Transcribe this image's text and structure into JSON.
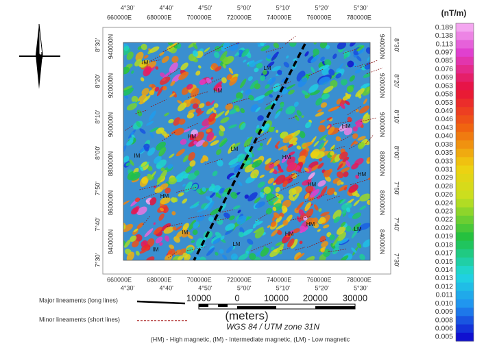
{
  "map": {
    "top_degrees": [
      "4°30'",
      "4°40'",
      "4°50'",
      "5°00'",
      "5°10'",
      "5°20'",
      "5°30'"
    ],
    "top_utm": [
      "660000E",
      "680000E",
      "700000E",
      "720000E",
      "740000E",
      "760000E",
      "780000E"
    ],
    "bottom_utm": [
      "660000E",
      "680000E",
      "700000E",
      "720000E",
      "740000E",
      "760000E",
      "780000E"
    ],
    "bottom_degrees": [
      "4°30'",
      "4°40'",
      "4°50'",
      "5°00'",
      "5°10'",
      "5°20'",
      "5°30'"
    ],
    "left_degrees": [
      "8°30'",
      "8°20'",
      "8°10'",
      "8°00'",
      "7°50'",
      "7°40'",
      "7°30'"
    ],
    "left_utm": [
      "940000N",
      "920000N",
      "900000N",
      "880000N",
      "860000N",
      "840000N"
    ],
    "right_utm": [
      "940000N",
      "920000N",
      "900000N",
      "880000N",
      "860000N",
      "840000N"
    ],
    "right_degrees": [
      "8°30'",
      "8°20'",
      "8°10'",
      "8°00'",
      "7°50'",
      "7°40'",
      "7°30'"
    ],
    "labels": [
      "IM",
      "LM",
      "HM",
      "HM",
      "HM",
      "LM",
      "IM",
      "HM",
      "HM",
      "HM",
      "HM",
      "IM",
      "HM",
      "HM",
      "LM",
      "IM",
      "LM"
    ]
  },
  "colorbar": {
    "unit": "(nT/m)",
    "values": [
      "0.189",
      "0.138",
      "0.113",
      "0.097",
      "0.085",
      "0.076",
      "0.069",
      "0.063",
      "0.058",
      "0.053",
      "0.049",
      "0.046",
      "0.043",
      "0.040",
      "0.038",
      "0.035",
      "0.033",
      "0.031",
      "0.029",
      "0.028",
      "0.026",
      "0.024",
      "0.023",
      "0.022",
      "0.020",
      "0.019",
      "0.018",
      "0.017",
      "0.015",
      "0.014",
      "0.013",
      "0.012",
      "0.011",
      "0.010",
      "0.009",
      "0.008",
      "0.006",
      "0.005"
    ]
  },
  "legend": {
    "major": "Major lineaments (long lines)",
    "minor": "Minor lineaments (short lines)"
  },
  "scale_bar": {
    "ticks": [
      "10000",
      "0",
      "10000",
      "20000",
      "30000"
    ],
    "unit": "(meters)",
    "projection": "WGS 84 / UTM zone 31N"
  },
  "footnote": "(HM) - High magnetic, (IM) - Intermediate magnetic, (LM) - Low magnetic"
}
